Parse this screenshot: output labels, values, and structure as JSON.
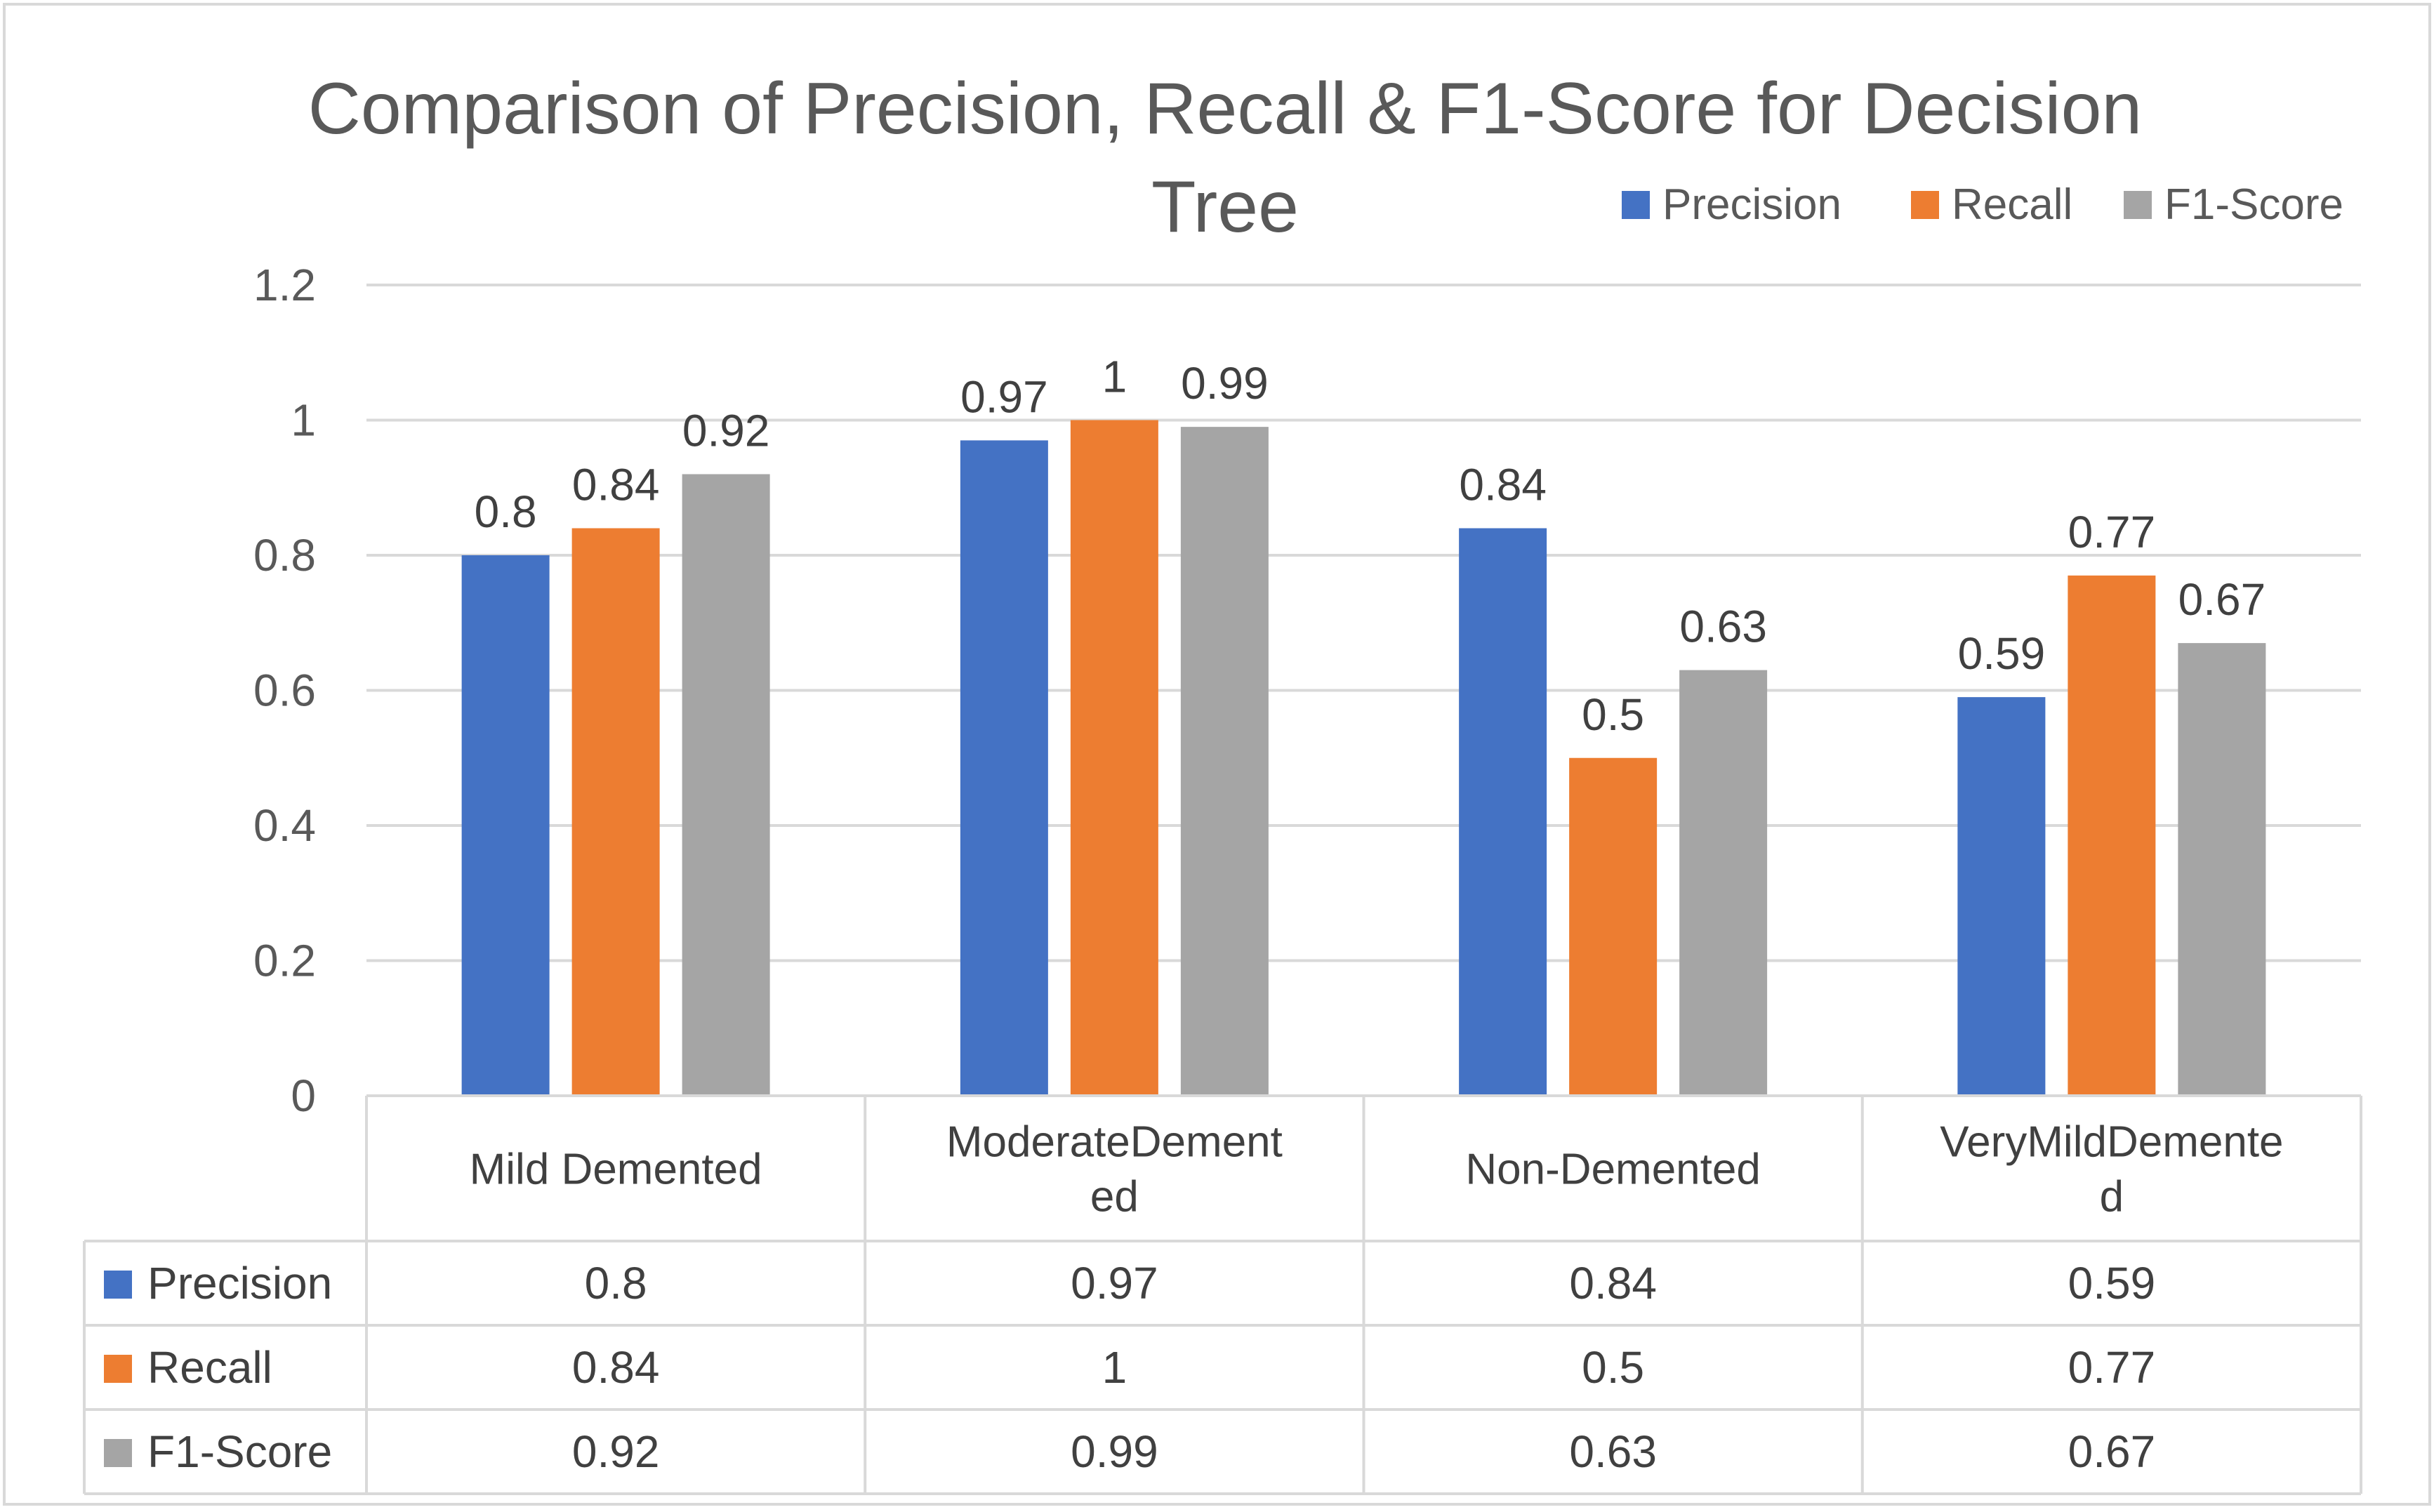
{
  "chart_data": {
    "type": "bar",
    "title": "Comparison of Precision, Recall & F1-Score for Decision Tree",
    "title_lines": [
      "Comparison of Precision, Recall & F1-Score for Decision",
      "Tree"
    ],
    "categories": [
      "Mild Demented",
      "ModerateDemented",
      "Non-Demented",
      "VeryMildDemented"
    ],
    "category_label_lines": [
      [
        "Mild Demented"
      ],
      [
        "ModerateDement",
        "ed"
      ],
      [
        "Non-Demented"
      ],
      [
        "VeryMildDemente",
        "d"
      ]
    ],
    "series": [
      {
        "name": "Precision",
        "color": "#4472C4",
        "values": [
          0.8,
          0.97,
          0.84,
          0.59
        ]
      },
      {
        "name": "Recall",
        "color": "#ED7D31",
        "values": [
          0.84,
          1,
          0.5,
          0.77
        ]
      },
      {
        "name": "F1-Score",
        "color": "#A5A5A5",
        "values": [
          0.92,
          0.99,
          0.63,
          0.67
        ]
      }
    ],
    "ylim": [
      0,
      1.2
    ],
    "yticks": [
      0,
      0.2,
      0.4,
      0.6,
      0.8,
      1,
      1.2
    ],
    "xlabel": "",
    "ylabel": "",
    "grid": true,
    "legend_position": "top-right",
    "data_table": true
  }
}
